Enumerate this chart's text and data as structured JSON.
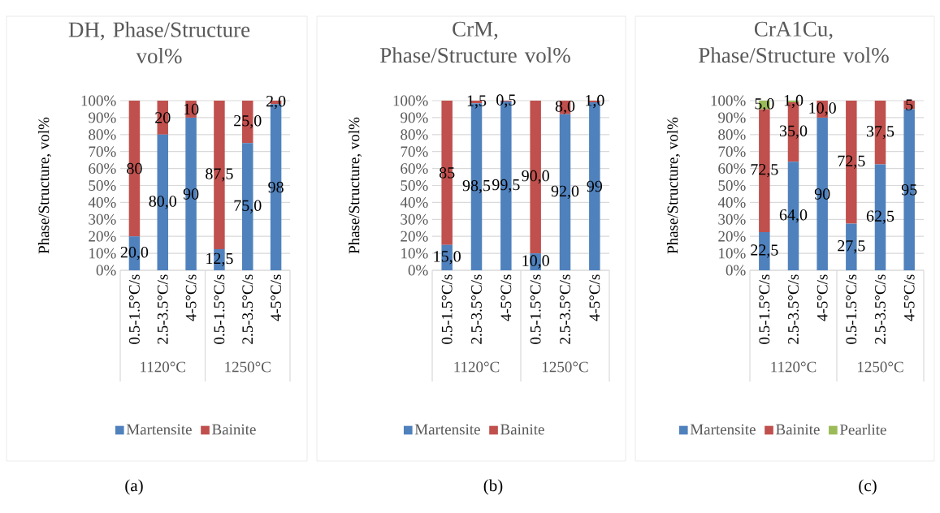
{
  "chart_data": [
    {
      "type": "bar",
      "stacked": true,
      "title": "DH, Phase/Structure vol%",
      "ylabel": "Phase/Structure, vol%",
      "categories": [
        "0.5-1.5°C/s",
        "2.5-3.5°C/s",
        "4-5°C/s",
        "0.5-1.5°C/s",
        "2.5-3.5°C/s",
        "4-5°C/s"
      ],
      "series": [
        {
          "name": "Martensite",
          "color": "#4f81bd",
          "values": [
            20.0,
            80.0,
            90,
            12.5,
            75.0,
            98
          ],
          "value_labels": [
            "20,0",
            "80,0",
            "90",
            "12,5",
            "75,0",
            "98"
          ]
        },
        {
          "name": "Bainite",
          "color": "#c0504d",
          "values": [
            80,
            20,
            10,
            87.5,
            25.0,
            2.0
          ],
          "value_labels": [
            "80",
            "20",
            "10",
            "87,5",
            "25,0",
            "2,0"
          ]
        }
      ],
      "ylim": [
        0,
        100
      ],
      "yticks": [
        {
          "value": 0,
          "label": "0%"
        },
        {
          "value": 10,
          "label": "10%"
        },
        {
          "value": 20,
          "label": "20%"
        },
        {
          "value": 30,
          "label": "30%"
        },
        {
          "value": 40,
          "label": "40%"
        },
        {
          "value": 50,
          "label": "50%"
        },
        {
          "value": 60,
          "label": "60%"
        },
        {
          "value": 70,
          "label": "70%"
        },
        {
          "value": 80,
          "label": "80%"
        },
        {
          "value": 90,
          "label": "90%"
        },
        {
          "value": 100,
          "label": "100%"
        }
      ],
      "grid": "y",
      "legend": "bottom",
      "annotations": [
        "1120°C",
        "1250°C",
        "(a)"
      ]
    },
    {
      "type": "bar",
      "stacked": true,
      "title": "CrM, Phase/Structure vol%",
      "ylabel": "Phase/Structure, vol%",
      "categories": [
        "0.5-1.5°C/s",
        "2.5-3.5°C/s",
        "4-5°C/s",
        "0.5-1.5°C/s",
        "2.5-3.5°C/s",
        "4-5°C/s"
      ],
      "series": [
        {
          "name": "Martensite",
          "color": "#4f81bd",
          "values": [
            15.0,
            98.5,
            99.5,
            10.0,
            92.0,
            99
          ],
          "value_labels": [
            "15,0",
            "98,5",
            "99,5",
            "10,0",
            "92,0",
            "99"
          ]
        },
        {
          "name": "Bainite",
          "color": "#c0504d",
          "values": [
            85,
            1.5,
            0.5,
            90.0,
            8.0,
            1.0
          ],
          "value_labels": [
            "85",
            "1,5",
            "0,5",
            "90,0",
            "8,0",
            "1,0"
          ]
        }
      ],
      "ylim": [
        0,
        100
      ],
      "yticks": [
        {
          "value": 0,
          "label": "0%"
        },
        {
          "value": 10,
          "label": "10%"
        },
        {
          "value": 20,
          "label": "20%"
        },
        {
          "value": 30,
          "label": "30%"
        },
        {
          "value": 40,
          "label": "40%"
        },
        {
          "value": 50,
          "label": "50%"
        },
        {
          "value": 60,
          "label": "60%"
        },
        {
          "value": 70,
          "label": "70%"
        },
        {
          "value": 80,
          "label": "80%"
        },
        {
          "value": 90,
          "label": "90%"
        },
        {
          "value": 100,
          "label": "100%"
        }
      ],
      "grid": "y",
      "legend": "bottom",
      "annotations": [
        "1120°C",
        "1250°C",
        "(b)"
      ]
    },
    {
      "type": "bar",
      "stacked": true,
      "title": "CrA1Cu, Phase/Structure vol%",
      "ylabel": "Phase/Structure, vol%",
      "categories": [
        "0.5-1.5°C/s",
        "2.5-3.5°C/s",
        "4-5°C/s",
        "0.5-1.5°C/s",
        "2.5-3.5°C/s",
        "4-5°C/s"
      ],
      "series": [
        {
          "name": "Martensite",
          "color": "#4f81bd",
          "values": [
            22.5,
            64.0,
            90,
            27.5,
            62.5,
            95
          ],
          "value_labels": [
            "22,5",
            "64,0",
            "90",
            "27,5",
            "62,5",
            "95"
          ]
        },
        {
          "name": "Bainite",
          "color": "#c0504d",
          "values": [
            72.5,
            35.0,
            10.0,
            72.5,
            37.5,
            5
          ],
          "value_labels": [
            "72,5",
            "35,0",
            "10,0",
            "72,5",
            "37,5",
            "5"
          ]
        },
        {
          "name": "Pearlite",
          "color": "#9bbb59",
          "values": [
            5.0,
            1.0,
            null,
            null,
            null,
            null
          ],
          "value_labels": [
            "5,0",
            "1,0",
            null,
            null,
            null,
            null
          ]
        }
      ],
      "ylim": [
        0,
        100
      ],
      "yticks": [
        {
          "value": 0,
          "label": "0%"
        },
        {
          "value": 10,
          "label": "10%"
        },
        {
          "value": 20,
          "label": "20%"
        },
        {
          "value": 30,
          "label": "30%"
        },
        {
          "value": 40,
          "label": "40%"
        },
        {
          "value": 50,
          "label": "50%"
        },
        {
          "value": 60,
          "label": "60%"
        },
        {
          "value": 70,
          "label": "70%"
        },
        {
          "value": 80,
          "label": "80%"
        },
        {
          "value": 90,
          "label": "90%"
        },
        {
          "value": 100,
          "label": "100%"
        }
      ],
      "grid": "y",
      "legend": "bottom",
      "annotations": [
        "1120°C",
        "1250°C",
        "(c)"
      ]
    }
  ]
}
